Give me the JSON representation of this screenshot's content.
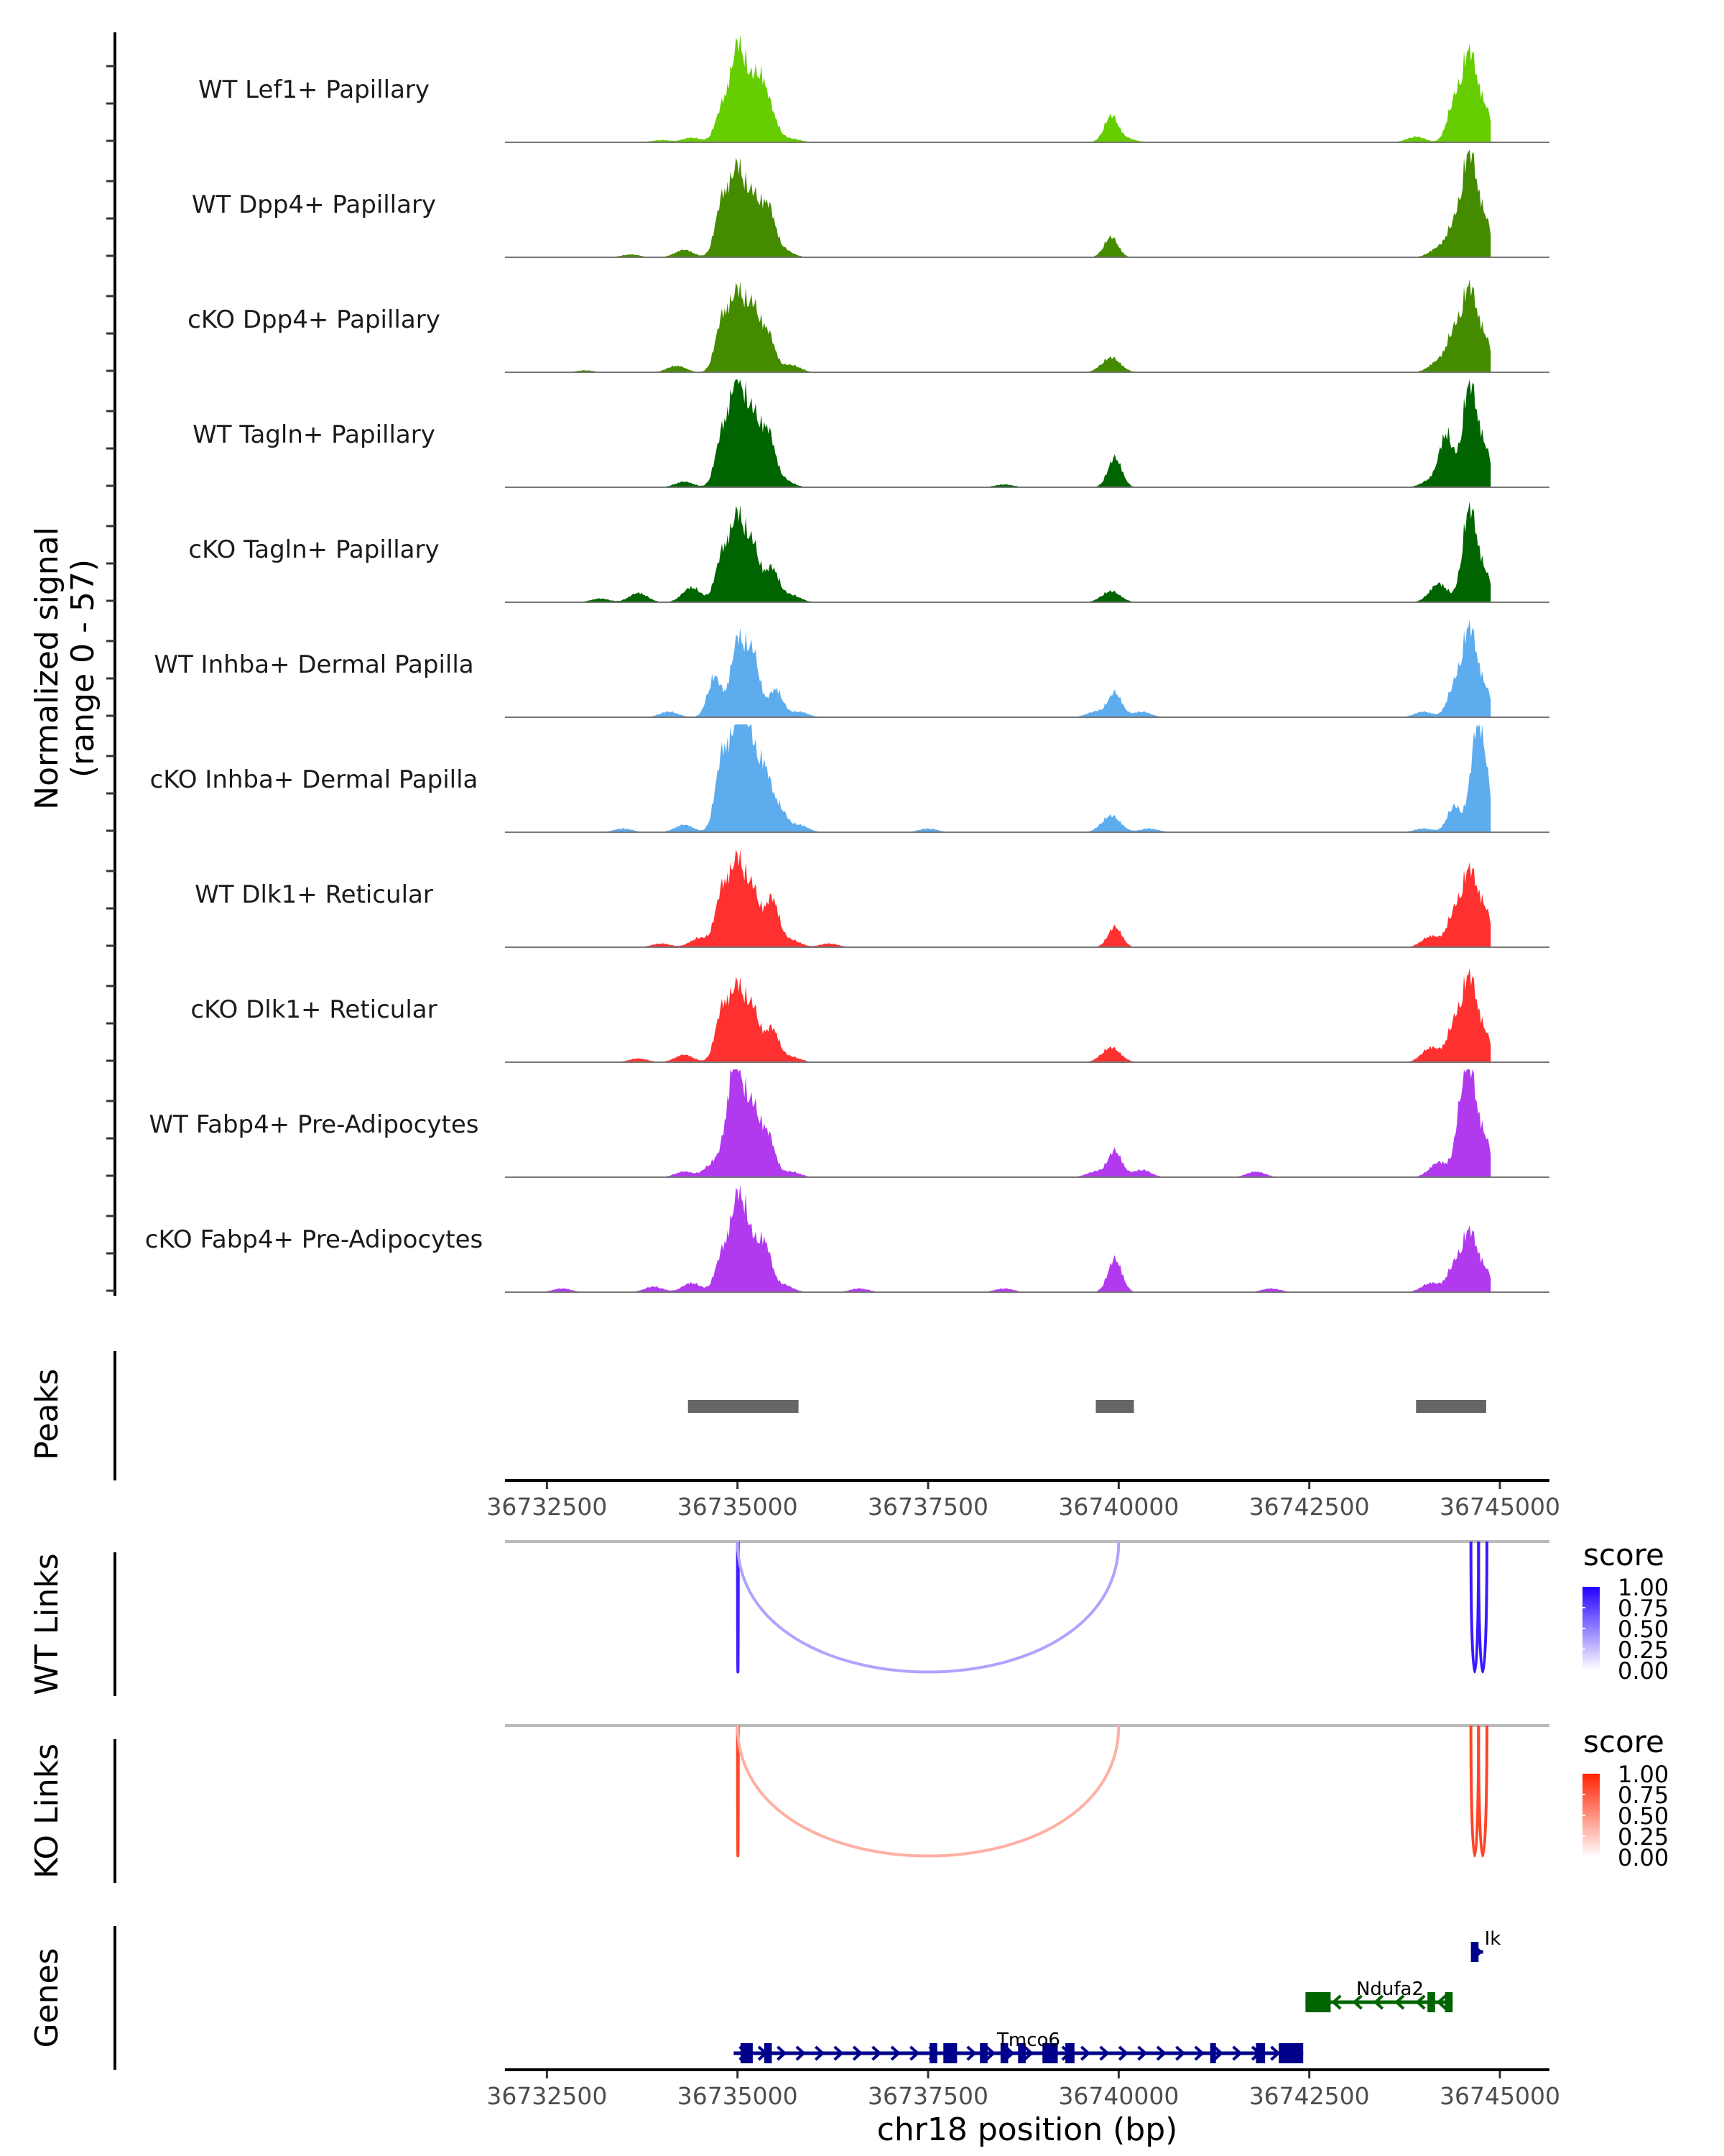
{
  "chart_data": {
    "type": "area",
    "title": "",
    "xlabel": "chr18 position (bp)",
    "ylabel": "Normalized signal\n(range 0 - 57)",
    "ylabel_lines": [
      "Normalized signal",
      "(range 0 - 57)"
    ],
    "ylim": [
      0,
      57
    ],
    "xlim": [
      36731950,
      36745650
    ],
    "x_ticks": [
      36732500,
      36735000,
      36737500,
      36740000,
      36742500,
      36745000
    ],
    "x_tick_labels": [
      "36732500",
      "36735000",
      "36737500",
      "36740000",
      "36742500",
      "36745000"
    ],
    "coverage_tracks": [
      {
        "name": "WT Lef1+ Papillary",
        "color": "#66CD00",
        "peaks": [
          [
            36734000,
            1.2
          ],
          [
            36734400,
            2.5
          ],
          [
            36734800,
            18
          ],
          [
            36735000,
            47
          ],
          [
            36735150,
            20
          ],
          [
            36735300,
            29
          ],
          [
            36735450,
            12
          ],
          [
            36735700,
            2
          ],
          [
            36739900,
            14
          ],
          [
            36740100,
            2
          ],
          [
            36743900,
            3
          ],
          [
            36744400,
            21
          ],
          [
            36744600,
            47
          ],
          [
            36744800,
            18
          ]
        ]
      },
      {
        "name": "WT Dpp4+ Papillary",
        "color": "#458B00",
        "peaks": [
          [
            36733600,
            1.5
          ],
          [
            36734300,
            4
          ],
          [
            36734800,
            30
          ],
          [
            36735000,
            45
          ],
          [
            36735200,
            30
          ],
          [
            36735400,
            26
          ],
          [
            36735600,
            4
          ],
          [
            36739900,
            11
          ],
          [
            36744200,
            5
          ],
          [
            36744400,
            16
          ],
          [
            36744600,
            55
          ],
          [
            36744800,
            20
          ]
        ]
      },
      {
        "name": "cKO Dpp4+ Papillary",
        "color": "#458B00",
        "peaks": [
          [
            36733000,
            1
          ],
          [
            36734200,
            3.5
          ],
          [
            36734800,
            28
          ],
          [
            36735000,
            40
          ],
          [
            36735200,
            33
          ],
          [
            36735400,
            20
          ],
          [
            36735700,
            4
          ],
          [
            36739900,
            8
          ],
          [
            36744200,
            6
          ],
          [
            36744400,
            20
          ],
          [
            36744600,
            44
          ],
          [
            36744800,
            18
          ]
        ]
      },
      {
        "name": "WT Tagln+ Papillary",
        "color": "#006400",
        "peaks": [
          [
            36734300,
            3
          ],
          [
            36734800,
            28
          ],
          [
            36735000,
            57
          ],
          [
            36735200,
            36
          ],
          [
            36735400,
            28
          ],
          [
            36735600,
            4
          ],
          [
            36738500,
            1.5
          ],
          [
            36739950,
            16
          ],
          [
            36744100,
            4
          ],
          [
            36744300,
            28
          ],
          [
            36744600,
            55
          ],
          [
            36744800,
            20
          ]
        ]
      },
      {
        "name": "cKO Tagln+ Papillary",
        "color": "#006400",
        "peaks": [
          [
            36733200,
            2
          ],
          [
            36733700,
            5
          ],
          [
            36734400,
            8
          ],
          [
            36734800,
            25
          ],
          [
            36735000,
            44
          ],
          [
            36735200,
            30
          ],
          [
            36735450,
            18
          ],
          [
            36735700,
            4
          ],
          [
            36739900,
            6
          ],
          [
            36744200,
            10
          ],
          [
            36744600,
            50
          ],
          [
            36744800,
            15
          ]
        ]
      },
      {
        "name": "WT Inhba+ Dermal Papilla",
        "color": "#5CACEE",
        "peaks": [
          [
            36734100,
            3
          ],
          [
            36734700,
            22
          ],
          [
            36735000,
            40
          ],
          [
            36735200,
            34
          ],
          [
            36735500,
            15
          ],
          [
            36735800,
            3
          ],
          [
            36739700,
            3
          ],
          [
            36739950,
            13
          ],
          [
            36740300,
            3
          ],
          [
            36744000,
            3
          ],
          [
            36744400,
            16
          ],
          [
            36744600,
            47
          ],
          [
            36744800,
            15
          ]
        ]
      },
      {
        "name": "cKO Inhba+ Dermal Papilla",
        "color": "#5CACEE",
        "peaks": [
          [
            36733500,
            2
          ],
          [
            36734300,
            4
          ],
          [
            36734800,
            40
          ],
          [
            36735000,
            51
          ],
          [
            36735150,
            45
          ],
          [
            36735350,
            33
          ],
          [
            36735550,
            12
          ],
          [
            36735800,
            4
          ],
          [
            36737500,
            2
          ],
          [
            36739900,
            9
          ],
          [
            36740400,
            2
          ],
          [
            36744000,
            2
          ],
          [
            36744400,
            14
          ],
          [
            36744700,
            48
          ],
          [
            36744800,
            20
          ]
        ]
      },
      {
        "name": "WT Dlk1+ Reticular",
        "color": "#FF3030",
        "peaks": [
          [
            36734000,
            2
          ],
          [
            36734500,
            5
          ],
          [
            36734800,
            30
          ],
          [
            36735000,
            44
          ],
          [
            36735200,
            30
          ],
          [
            36735450,
            26
          ],
          [
            36735700,
            4
          ],
          [
            36736200,
            2
          ],
          [
            36739950,
            11
          ],
          [
            36744100,
            6
          ],
          [
            36744400,
            18
          ],
          [
            36744600,
            40
          ],
          [
            36744800,
            20
          ]
        ]
      },
      {
        "name": "cKO Dlk1+ Reticular",
        "color": "#FF3030",
        "peaks": [
          [
            36733700,
            2
          ],
          [
            36734300,
            4
          ],
          [
            36734800,
            28
          ],
          [
            36735000,
            38
          ],
          [
            36735200,
            28
          ],
          [
            36735450,
            18
          ],
          [
            36735700,
            3
          ],
          [
            36739900,
            8
          ],
          [
            36744100,
            8
          ],
          [
            36744400,
            20
          ],
          [
            36744600,
            45
          ],
          [
            36744800,
            15
          ]
        ]
      },
      {
        "name": "WT Fabp4+ Pre-Adipocytes",
        "color": "#B23AEE",
        "peaks": [
          [
            36734300,
            3
          ],
          [
            36734700,
            8
          ],
          [
            36734900,
            22
          ],
          [
            36735000,
            50
          ],
          [
            36735200,
            35
          ],
          [
            36735400,
            22
          ],
          [
            36735700,
            3
          ],
          [
            36739700,
            3
          ],
          [
            36739950,
            14
          ],
          [
            36740300,
            4
          ],
          [
            36741800,
            3
          ],
          [
            36744200,
            8
          ],
          [
            36744500,
            25
          ],
          [
            36744600,
            49
          ],
          [
            36744800,
            20
          ]
        ]
      },
      {
        "name": "cKO Fabp4+ Pre-Adipocytes",
        "color": "#B23AEE",
        "peaks": [
          [
            36732700,
            2
          ],
          [
            36733900,
            3
          ],
          [
            36734400,
            5
          ],
          [
            36734800,
            20
          ],
          [
            36735000,
            46
          ],
          [
            36735150,
            25
          ],
          [
            36735350,
            26
          ],
          [
            36735600,
            4
          ],
          [
            36736600,
            2
          ],
          [
            36738500,
            2
          ],
          [
            36739950,
            18
          ],
          [
            36742000,
            2
          ],
          [
            36744100,
            5
          ],
          [
            36744400,
            14
          ],
          [
            36744600,
            32
          ],
          [
            36744800,
            12
          ]
        ]
      }
    ],
    "peaks_track": {
      "label": "Peaks",
      "color": "#666666",
      "regions": [
        [
          36734350,
          36735800
        ],
        [
          36739700,
          36740200
        ],
        [
          36743900,
          36744820
        ]
      ]
    },
    "links_tracks": [
      {
        "label": "WT Links",
        "legend_title": "score",
        "color_high": "#2200FF",
        "color_low": "#FFFFFF",
        "links": [
          {
            "start": 36735000,
            "end": 36735010,
            "score": 0.85
          },
          {
            "start": 36735000,
            "end": 36740000,
            "score": 0.25
          },
          {
            "start": 36744620,
            "end": 36744720,
            "score": 0.88
          },
          {
            "start": 36744720,
            "end": 36744830,
            "score": 0.88
          }
        ]
      },
      {
        "label": "KO Links",
        "legend_title": "score",
        "color_high": "#FF2200",
        "color_low": "#FFFFFF",
        "links": [
          {
            "start": 36735000,
            "end": 36735010,
            "score": 0.8
          },
          {
            "start": 36735000,
            "end": 36740000,
            "score": 0.25
          },
          {
            "start": 36744620,
            "end": 36744720,
            "score": 0.82
          },
          {
            "start": 36744720,
            "end": 36744830,
            "score": 0.82
          }
        ]
      }
    ],
    "legend_ticks": [
      "1.00",
      "0.75",
      "0.50",
      "0.25",
      "0.00"
    ],
    "genes_track": {
      "label": "Genes",
      "genes": [
        {
          "name": "Ik",
          "strand": "+",
          "color": "#00008B",
          "row": 0,
          "start": 36744620,
          "end": 36744780,
          "exons": [
            [
              36744620,
              36744720
            ]
          ]
        },
        {
          "name": "Ndufa2",
          "strand": "-",
          "color": "#006400",
          "row": 1,
          "start": 36742450,
          "end": 36744380,
          "exons": [
            [
              36742450,
              36742780
            ],
            [
              36744050,
              36744150
            ],
            [
              36744280,
              36744380
            ]
          ]
        },
        {
          "name": "Tmco6",
          "strand": "+",
          "color": "#00008B",
          "row": 2,
          "start": 36734950,
          "end": 36742420,
          "exons": [
            [
              36735040,
              36735200
            ],
            [
              36735350,
              36735450
            ],
            [
              36737520,
              36737620
            ],
            [
              36737700,
              36737880
            ],
            [
              36738180,
              36738280
            ],
            [
              36738450,
              36738550
            ],
            [
              36738680,
              36738780
            ],
            [
              36739000,
              36739200
            ],
            [
              36739300,
              36739420
            ],
            [
              36741200,
              36741270
            ],
            [
              36741800,
              36741920
            ],
            [
              36742100,
              36742420
            ]
          ]
        }
      ]
    }
  }
}
